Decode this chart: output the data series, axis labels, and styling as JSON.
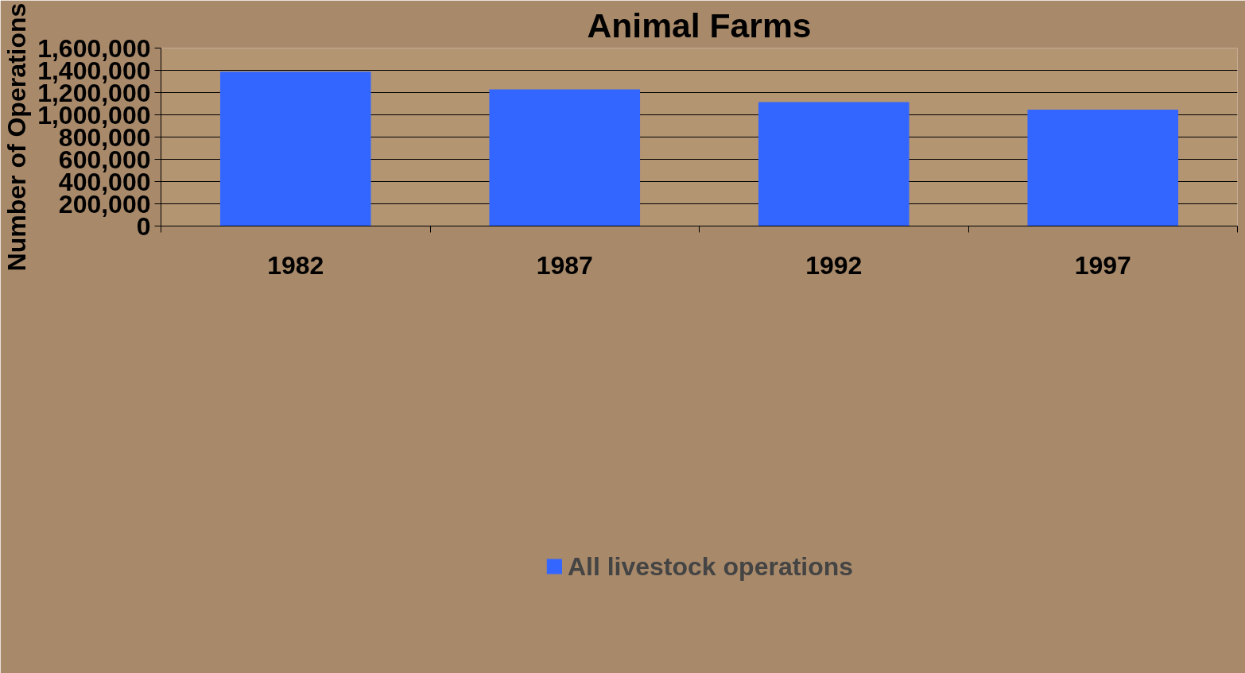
{
  "chart_data": {
    "type": "bar",
    "title": "Animal Farms",
    "ylabel": "Number of Operations",
    "categories": [
      "1982",
      "1987",
      "1992",
      "1997"
    ],
    "series": [
      {
        "name": "All livestock operations",
        "color": "#3366ff",
        "values": [
          1387000,
          1228000,
          1114000,
          1046000
        ]
      }
    ],
    "ylim": [
      0,
      1600000
    ],
    "yticks": [
      0,
      {
        "value": 200000,
        "label": "200,000"
      },
      {
        "value": 400000,
        "label": "400,000"
      },
      {
        "value": 600000,
        "label": "600,000"
      },
      {
        "value": 800000,
        "label": "800,000"
      },
      {
        "value": 1000000,
        "label": "1,000,000"
      },
      {
        "value": 1200000,
        "label": "1,200,000"
      },
      {
        "value": 1400000,
        "label": "1,400,000"
      },
      {
        "value": 1600000,
        "label": "1,600,000"
      }
    ],
    "grid": "y",
    "legend": "bottom"
  }
}
